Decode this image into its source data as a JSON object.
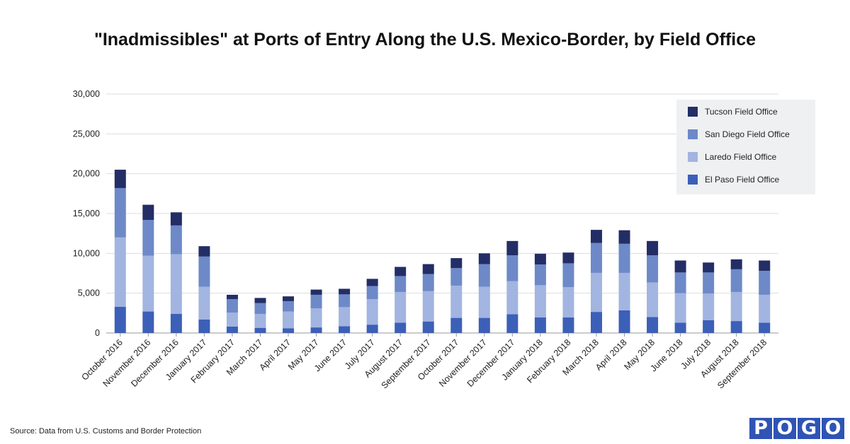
{
  "colors": {
    "el_paso": "#3c5fb8",
    "laredo": "#a2b4e0",
    "san_diego": "#6d89c8",
    "tucson": "#232e66",
    "grid": "#dddddd",
    "axis": "#999999"
  },
  "source_text": "Source: Data from U.S. Customs and Border Protection",
  "logo_letters": [
    "P",
    "O",
    "G",
    "O"
  ],
  "chart_data": {
    "type": "bar",
    "stacked": true,
    "title": "\"Inadmissibles\" at Ports of Entry Along the U.S. Mexico-Border, by Field Office",
    "categories": [
      "October 2016",
      "November 2016",
      "December 2016",
      "January 2017",
      "February 2017",
      "March 2017",
      "April 2017",
      "May 2017",
      "June 2017",
      "July 2017",
      "August 2017",
      "September 2017",
      "October 2017",
      "November 2017",
      "December 2017",
      "January 2018",
      "February 2018",
      "March 2018",
      "April 2018",
      "May 2018",
      "June 2018",
      "July 2018",
      "August 2018",
      "September 2018"
    ],
    "series": [
      {
        "name": "El Paso Field Office",
        "values": [
          3300,
          2700,
          2400,
          1700,
          800,
          650,
          600,
          700,
          850,
          1050,
          1300,
          1450,
          1900,
          1900,
          2350,
          1950,
          1950,
          2650,
          2850,
          2000,
          1300,
          1600,
          1500,
          1300
        ]
      },
      {
        "name": "Laredo Field Office",
        "values": [
          8700,
          7000,
          7500,
          4100,
          1750,
          1750,
          2100,
          2400,
          2400,
          3200,
          3850,
          3800,
          4050,
          3900,
          4150,
          4050,
          3800,
          4900,
          4700,
          4350,
          3700,
          3350,
          3650,
          3500
        ]
      },
      {
        "name": "San Diego Field Office",
        "values": [
          6200,
          4500,
          3600,
          3800,
          1700,
          1350,
          1300,
          1700,
          1600,
          1650,
          2000,
          2150,
          2200,
          2850,
          3250,
          2600,
          3000,
          3750,
          3650,
          3400,
          2600,
          2650,
          2850,
          3000
        ]
      },
      {
        "name": "Tucson Field Office",
        "values": [
          2300,
          1900,
          1650,
          1300,
          550,
          650,
          600,
          650,
          700,
          900,
          1150,
          1250,
          1250,
          1350,
          1800,
          1350,
          1350,
          1650,
          1700,
          1800,
          1500,
          1250,
          1250,
          1300
        ]
      }
    ],
    "legend_order": [
      "Tucson Field Office",
      "San Diego Field Office",
      "Laredo Field Office",
      "El Paso Field Office"
    ],
    "y_ticks": [
      "0",
      "5,000",
      "10,000",
      "15,000",
      "20,000",
      "25,000",
      "30,000"
    ],
    "ylim": [
      0,
      30000
    ],
    "grid": true,
    "legend_position": "top-right",
    "xlabel": "",
    "ylabel": ""
  }
}
